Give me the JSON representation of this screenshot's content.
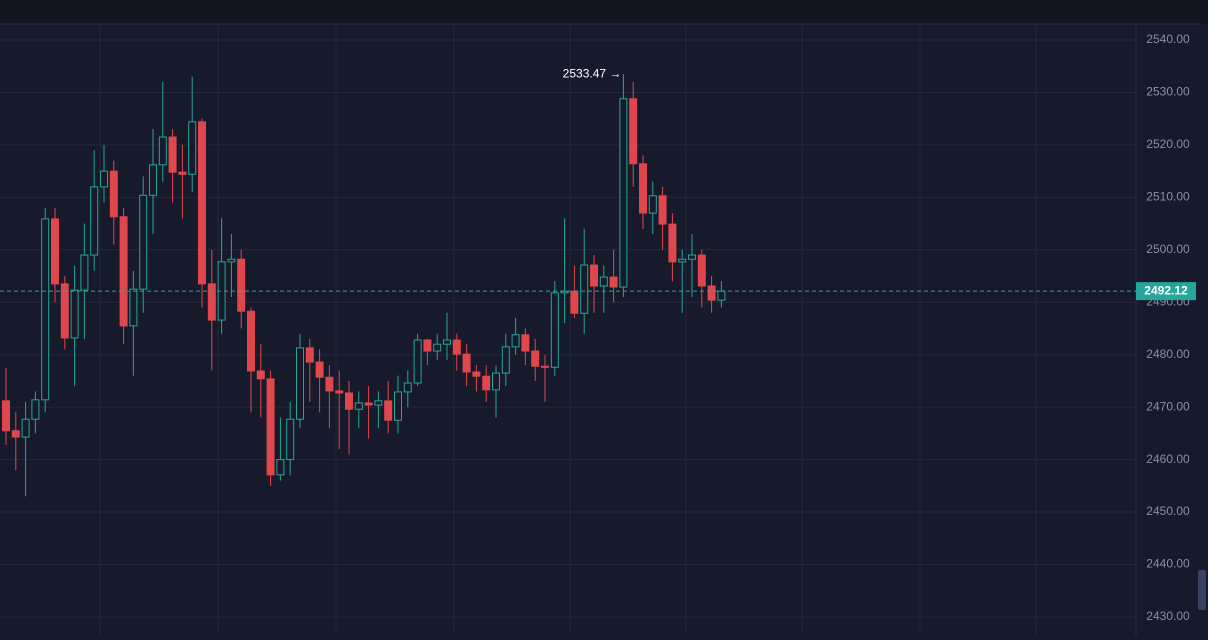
{
  "chart_data": {
    "type": "candlestick",
    "open": [
      2471.2,
      2465.5,
      2464.3,
      2467.7,
      2471.4,
      2505.9,
      2493.5,
      2483.2,
      2492.3,
      2499,
      2512,
      2515,
      2506.3,
      2485.5,
      2492.5,
      2510.4,
      2516.2,
      2521.5,
      2514.8,
      2514.4,
      2524.4,
      2493.5,
      2486.6,
      2497.7,
      2498.2,
      2488.3,
      2476.9,
      2475.4,
      2457.1,
      2460,
      2467.7,
      2481.3,
      2478.6,
      2475.7,
      2473.1,
      2472.7,
      2469.6,
      2470.8,
      2470.4,
      2471.2,
      2467.5,
      2472.9,
      2474.6,
      2482.8,
      2480.7,
      2482,
      2482.8,
      2480.1,
      2476.7,
      2475.9,
      2473.3,
      2476.5,
      2481.5,
      2483.8,
      2480.7,
      2477.8,
      2477.6,
      2491.8,
      2492.1,
      2487.9,
      2497.1,
      2493.1,
      2494.8,
      2492.9,
      2528.8,
      2516.4,
      2507,
      2510.3,
      2504.9,
      2497.7,
      2498.2,
      2499,
      2493.1,
      2490.4
    ],
    "high": [
      2477.5,
      2469,
      2471,
      2473,
      2508,
      2508,
      2495,
      2497,
      2505,
      2519,
      2520,
      2517,
      2508,
      2496,
      2514,
      2523,
      2532,
      2523,
      2520,
      2533,
      2525,
      2500,
      2506,
      2503,
      2500,
      2489,
      2482,
      2477,
      2468,
      2471,
      2484,
      2483,
      2481,
      2478,
      2477,
      2475,
      2473,
      2474,
      2473,
      2475,
      2476,
      2477,
      2484,
      2483,
      2484,
      2488,
      2484,
      2482,
      2478,
      2478,
      2478,
      2484,
      2487,
      2485,
      2483,
      2480,
      2494,
      2506,
      2497,
      2504,
      2499,
      2497,
      2500,
      2533.47,
      2532,
      2518,
      2513,
      2512,
      2507,
      2500,
      2503,
      2500,
      2495,
      2494
    ],
    "low": [
      2462.8,
      2458,
      2453,
      2465,
      2469,
      2490,
      2481,
      2474,
      2483,
      2496,
      2509,
      2501,
      2482,
      2476,
      2488,
      2503,
      2513,
      2509,
      2506,
      2511,
      2489,
      2477,
      2484,
      2491,
      2485,
      2469,
      2468,
      2455,
      2456,
      2457,
      2466,
      2471,
      2469,
      2466,
      2462,
      2461,
      2466,
      2464,
      2466,
      2465,
      2465,
      2470,
      2474,
      2478,
      2479,
      2479,
      2477,
      2474,
      2473,
      2471,
      2468,
      2474,
      2480,
      2478,
      2475,
      2471,
      2476,
      2486,
      2487,
      2484,
      2488,
      2488,
      2490,
      2491,
      2512,
      2504,
      2503,
      2500,
      2494,
      2488,
      2491,
      2489,
      2488,
      2489
    ],
    "close": [
      2465.5,
      2464.3,
      2467.7,
      2471.4,
      2505.9,
      2493.5,
      2483.2,
      2492.3,
      2499,
      2512,
      2515,
      2506.3,
      2485.5,
      2492.5,
      2510.4,
      2516.2,
      2521.5,
      2514.8,
      2514.4,
      2524.4,
      2493.5,
      2486.6,
      2497.7,
      2498.2,
      2488.3,
      2476.9,
      2475.4,
      2457.1,
      2460,
      2467.7,
      2481.3,
      2478.6,
      2475.7,
      2473.1,
      2472.7,
      2469.6,
      2470.8,
      2470.4,
      2471.2,
      2467.5,
      2472.9,
      2474.6,
      2482.8,
      2480.7,
      2482,
      2482.8,
      2480.1,
      2476.7,
      2475.9,
      2473.3,
      2476.5,
      2481.5,
      2483.8,
      2480.7,
      2477.8,
      2477.6,
      2491.8,
      2492.1,
      2487.9,
      2497.1,
      2493.1,
      2494.8,
      2492.9,
      2528.8,
      2516.4,
      2507,
      2510.3,
      2504.9,
      2497.7,
      2498.2,
      2499,
      2493.1,
      2490.4,
      2492.12
    ],
    "up_color": "#26a69a",
    "down_color": "#e0474c",
    "ylim": [
      2426.56,
      2543.05
    ],
    "yticks": [
      {
        "value": 2430,
        "label": "2430.00"
      },
      {
        "value": 2440,
        "label": "2440.00"
      },
      {
        "value": 2450,
        "label": "2450.00"
      },
      {
        "value": 2460,
        "label": "2460.00"
      },
      {
        "value": 2470,
        "label": "2470.00"
      },
      {
        "value": 2480,
        "label": "2480.00"
      },
      {
        "value": 2490,
        "label": "2490.00"
      },
      {
        "value": 2500,
        "label": "2500.00"
      },
      {
        "value": 2510,
        "label": "2510.00"
      },
      {
        "value": 2520,
        "label": "2520.00"
      },
      {
        "value": 2530,
        "label": "2530.00"
      },
      {
        "value": 2540,
        "label": "2540.00"
      }
    ],
    "grid": true,
    "last_price": 2492.12,
    "max_marker": {
      "value": 2533.47,
      "label": "2533.47 →"
    }
  }
}
